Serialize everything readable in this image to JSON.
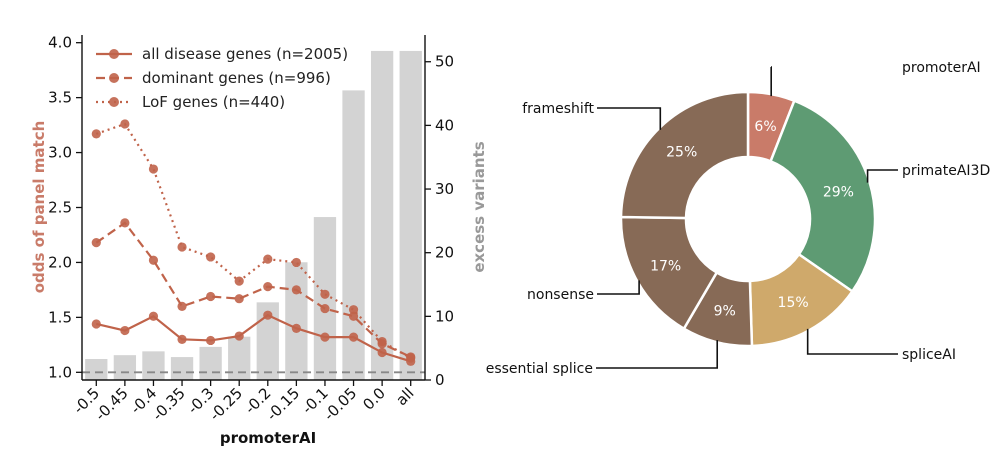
{
  "chart_data": [
    {
      "type": "line",
      "xlabel": "promoterAI",
      "ylabel": "odds of panel match",
      "y2label": "excess variants",
      "categories": [
        "-0.5",
        "-0.45",
        "-0.4",
        "-0.35",
        "-0.3",
        "-0.25",
        "-0.2",
        "-0.15",
        "-0.1",
        "-0.05",
        "0.0",
        "all"
      ],
      "ylim": [
        0.93,
        4.07
      ],
      "y2lim": [
        0,
        54.2
      ],
      "yticks": [
        "1.0",
        "1.5",
        "2.0",
        "2.5",
        "3.0",
        "3.5",
        "4.0"
      ],
      "y2ticks": [
        "0",
        "10",
        "20",
        "30",
        "40",
        "50"
      ],
      "reference_line": 1.0,
      "bars": {
        "name": "excess variants",
        "color": "#d3d3d3",
        "values": [
          3.3,
          3.9,
          4.5,
          3.6,
          5.2,
          6.8,
          12.2,
          18.5,
          25.6,
          45.5,
          51.7,
          51.7
        ]
      },
      "series": [
        {
          "name": "all disease genes (n=2005)",
          "style": "solid",
          "color": "#c0634a",
          "values": [
            1.44,
            1.38,
            1.51,
            1.3,
            1.29,
            1.33,
            1.52,
            1.4,
            1.32,
            1.32,
            1.18,
            1.1
          ]
        },
        {
          "name": "dominant genes (n=996)",
          "style": "dashed",
          "color": "#c0634a",
          "values": [
            2.18,
            2.36,
            2.02,
            1.6,
            1.69,
            1.67,
            1.78,
            1.75,
            1.58,
            1.51,
            1.26,
            1.14
          ]
        },
        {
          "name": "LoF genes (n=440)",
          "style": "dotted",
          "color": "#c0634a",
          "values": [
            3.17,
            3.26,
            2.85,
            2.14,
            2.05,
            1.83,
            2.03,
            2.0,
            1.71,
            1.57,
            1.28,
            1.13
          ]
        }
      ],
      "legend": "top-left",
      "grid": false
    },
    {
      "type": "pie",
      "donut": true,
      "slices": [
        {
          "label": "promoterAI",
          "value": 6,
          "text": "6%",
          "color": "#c97b69"
        },
        {
          "label": "primateAI3D",
          "value": 29,
          "text": "29%",
          "color": "#5e9b73"
        },
        {
          "label": "spliceAI",
          "value": 15,
          "text": "15%",
          "color": "#cfa96b"
        },
        {
          "label": "essential splice",
          "value": 9,
          "text": "9%",
          "color": "#876a56"
        },
        {
          "label": "nonsense",
          "value": 17,
          "text": "17%",
          "color": "#876a56"
        },
        {
          "label": "frameshift",
          "value": 25,
          "text": "25%",
          "color": "#876a56"
        }
      ]
    }
  ]
}
